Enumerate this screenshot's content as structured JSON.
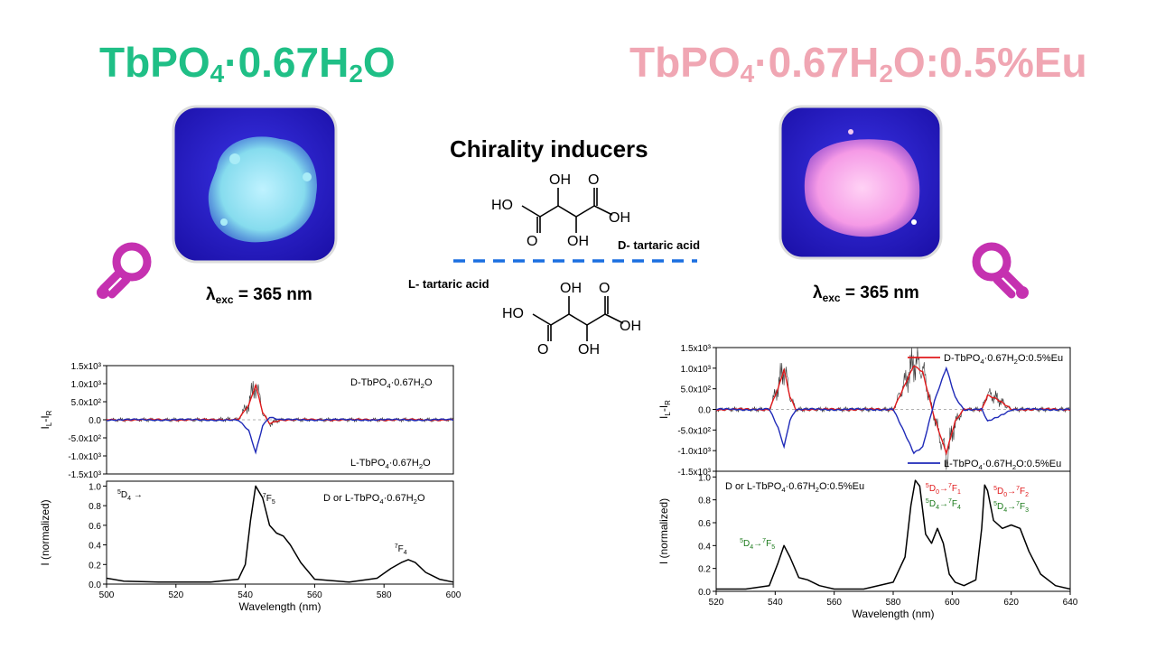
{
  "titles": {
    "left": {
      "pre": "TbPO",
      "sub1": "4",
      "mid": "·0.67H",
      "sub2": "2",
      "post": "O"
    },
    "right": {
      "pre": "TbPO",
      "sub1": "4",
      "mid": "·0.67H",
      "sub2": "2",
      "post": "O:0.5%Eu"
    }
  },
  "excitation": {
    "symbol": "λ",
    "sub": "exc",
    "value": " = 365 nm"
  },
  "inducers": {
    "title": "Chirality inducers",
    "d_label": "D- tartaric acid",
    "l_label": "L- tartaric acid",
    "atoms": {
      "oh": "OH",
      "ho": "HO",
      "o": "O"
    }
  },
  "colors": {
    "tb_green": "#1fbf86",
    "eu_pink": "#f0a6b3",
    "dashed_line": "#1a6fe0",
    "bulb": "#c531b0",
    "cpl_d": "#e0191b",
    "cpl_l": "#1f2ab8",
    "uv_bg": "#2a1fc8"
  },
  "icons": [
    "light-bulb-icon",
    "light-bulb-icon"
  ],
  "chart_data": [
    {
      "type": "line",
      "panel": "CPL (left, top)",
      "ylabel": "I_L - I_R",
      "yticks": [
        "1.5x10³",
        "1.0x10³",
        "5.0x10²",
        "0.0",
        "-5.0x10²",
        "-1.0x10³",
        "-1.5x10³"
      ],
      "ylim": [
        -1500,
        1500
      ],
      "xlim": [
        500,
        600
      ],
      "series": [
        {
          "name": "D-TbPO4·0.67H2O",
          "color": "#e0191b",
          "x": [
            500,
            530,
            538,
            541,
            543,
            545,
            547,
            550,
            560,
            600
          ],
          "y": [
            0,
            0,
            20,
            400,
            950,
            200,
            -100,
            0,
            0,
            0
          ]
        },
        {
          "name": "L-TbPO4·0.67H2O",
          "color": "#1f2ab8",
          "x": [
            500,
            530,
            538,
            541,
            543,
            545,
            547,
            550,
            560,
            600
          ],
          "y": [
            0,
            0,
            -20,
            -300,
            -900,
            -150,
            80,
            0,
            0,
            0
          ]
        }
      ],
      "legend_labels": {
        "d": {
          "pre": "D-TbPO",
          "sub1": "4",
          "mid": "·0.67H",
          "sub2": "2",
          "post": "O"
        },
        "l": {
          "pre": "L-TbPO",
          "sub1": "4",
          "mid": "·0.67H",
          "sub2": "2",
          "post": "O"
        }
      }
    },
    {
      "type": "line",
      "panel": "Emission (left, bottom)",
      "xlabel": "Wavelength (nm)",
      "ylabel": "I (normalized)",
      "xticks": [
        500,
        520,
        540,
        560,
        580,
        600
      ],
      "yticks": [
        0.0,
        0.2,
        0.4,
        0.6,
        0.8,
        1.0
      ],
      "xlim": [
        500,
        600
      ],
      "ylim": [
        0,
        1.05
      ],
      "series": [
        {
          "name": "",
          "x": [
            500,
            505,
            515,
            530,
            538,
            540,
            541.5,
            543,
            545,
            547,
            549,
            551,
            553,
            556,
            560,
            570,
            578,
            582,
            585,
            587,
            589,
            592,
            596,
            600
          ],
          "y": [
            0.06,
            0.03,
            0.02,
            0.02,
            0.05,
            0.2,
            0.65,
            1.0,
            0.88,
            0.6,
            0.52,
            0.49,
            0.4,
            0.22,
            0.05,
            0.02,
            0.06,
            0.16,
            0.22,
            0.25,
            0.22,
            0.12,
            0.05,
            0.02
          ]
        }
      ],
      "annotations": {
        "d4": {
          "sup": "5",
          "base": "D",
          "sub": "4",
          "arrow": "→"
        },
        "f5": {
          "sup": "7",
          "base": "F",
          "sub": "5"
        },
        "f4": {
          "sup": "7",
          "base": "F",
          "sub": "4"
        }
      },
      "legend": {
        "pre": "D or L-TbPO",
        "sub1": "4",
        "mid": "·0.67H",
        "sub2": "2",
        "post": "O"
      }
    },
    {
      "type": "line",
      "panel": "CPL (right, top)",
      "ylabel": "I_L - I_R",
      "yticks": [
        "1.5x10³",
        "1.0x10³",
        "5.0x10²",
        "0.0",
        "-5.0x10²",
        "-1.0x10³",
        "-1.5x10³"
      ],
      "ylim": [
        -1500,
        1500
      ],
      "xlim": [
        520,
        640
      ],
      "series": [
        {
          "name": "D-TbPO4·0.67H2O:0.5%Eu",
          "color": "#e0191b",
          "x": [
            520,
            538,
            541,
            543,
            545,
            547,
            580,
            584,
            587,
            590,
            594,
            598,
            601,
            604,
            610,
            612,
            615,
            620,
            640
          ],
          "y": [
            0,
            0,
            500,
            950,
            300,
            0,
            0,
            600,
            1050,
            900,
            -200,
            -1050,
            -300,
            0,
            0,
            350,
            250,
            0,
            0
          ]
        },
        {
          "name": "L-TbPO4·0.67H2O:0.5%Eu",
          "color": "#1f2ab8",
          "x": [
            520,
            538,
            541,
            543,
            545,
            547,
            580,
            584,
            587,
            590,
            594,
            598,
            601,
            604,
            610,
            612,
            615,
            620,
            640
          ],
          "y": [
            0,
            0,
            -450,
            -900,
            -250,
            0,
            0,
            -600,
            -1050,
            -900,
            200,
            1000,
            300,
            0,
            0,
            -300,
            -200,
            0,
            0
          ]
        }
      ],
      "legend_labels": {
        "d": {
          "pre": "D-TbPO",
          "sub1": "4",
          "mid": "·0.67H",
          "sub2": "2",
          "post": "O:0.5%Eu"
        },
        "l": {
          "pre": "L-TbPO",
          "sub1": "4",
          "mid": "·0.67H",
          "sub2": "2",
          "post": "O:0.5%Eu"
        }
      }
    },
    {
      "type": "line",
      "panel": "Emission (right, bottom)",
      "xlabel": "Wavelength (nm)",
      "ylabel": "I (normalized)",
      "xticks": [
        520,
        540,
        560,
        580,
        600,
        620,
        640
      ],
      "yticks": [
        0.0,
        0.2,
        0.4,
        0.6,
        0.8,
        1.0
      ],
      "xlim": [
        520,
        640
      ],
      "ylim": [
        0,
        1.05
      ],
      "series": [
        {
          "name": "",
          "x": [
            520,
            530,
            538,
            541,
            543,
            545,
            548,
            551,
            555,
            560,
            570,
            580,
            584,
            586,
            587.5,
            589,
            591,
            593,
            595,
            597,
            599,
            601,
            604,
            608,
            610,
            611,
            612,
            614,
            617,
            620,
            623,
            626,
            630,
            635,
            640
          ],
          "y": [
            0.02,
            0.02,
            0.05,
            0.25,
            0.4,
            0.3,
            0.12,
            0.1,
            0.05,
            0.02,
            0.02,
            0.08,
            0.3,
            0.75,
            0.97,
            0.92,
            0.5,
            0.42,
            0.55,
            0.42,
            0.15,
            0.08,
            0.05,
            0.1,
            0.55,
            0.93,
            0.88,
            0.62,
            0.55,
            0.58,
            0.55,
            0.35,
            0.15,
            0.05,
            0.02
          ]
        }
      ],
      "annotations": {
        "d4f5": {
          "a": {
            "sup": "5",
            "base": "D",
            "sub": "4"
          },
          "b": {
            "sup": "7",
            "base": "F",
            "sub": "5"
          }
        },
        "d0f1": {
          "a": {
            "sup": "5",
            "base": "D",
            "sub": "0"
          },
          "b": {
            "sup": "7",
            "base": "F",
            "sub": "1"
          }
        },
        "d4f4": {
          "a": {
            "sup": "5",
            "base": "D",
            "sub": "4"
          },
          "b": {
            "sup": "7",
            "base": "F",
            "sub": "4"
          }
        },
        "d0f2": {
          "a": {
            "sup": "5",
            "base": "D",
            "sub": "0"
          },
          "b": {
            "sup": "7",
            "base": "F",
            "sub": "2"
          }
        },
        "d4f3": {
          "a": {
            "sup": "5",
            "base": "D",
            "sub": "4"
          },
          "b": {
            "sup": "7",
            "base": "F",
            "sub": "3"
          }
        }
      },
      "legend": {
        "pre": "D or L-TbPO",
        "sub1": "4",
        "mid": "·0.67H",
        "sub2": "2",
        "post": "O:0.5%Eu"
      }
    }
  ]
}
